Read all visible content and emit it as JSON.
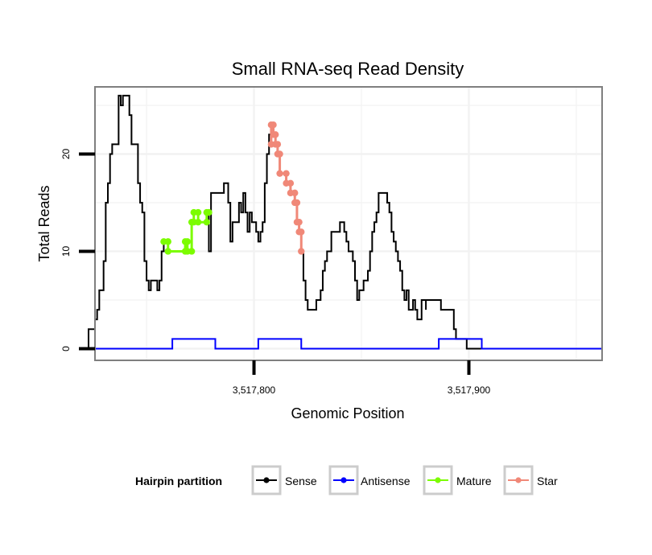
{
  "chart_data": {
    "type": "line",
    "title": "Small RNA-seq Read Density",
    "xlabel": "Genomic Position",
    "ylabel": "Total Reads",
    "xlim": [
      3517726,
      3517962
    ],
    "ylim": [
      -1.2,
      26.9
    ],
    "x_ticks": [
      {
        "value": 3517800,
        "label": "3,517,800"
      },
      {
        "value": 3517900,
        "label": "3,517,900"
      }
    ],
    "y_ticks": [
      {
        "value": 0,
        "label": "0"
      },
      {
        "value": 10,
        "label": "10"
      },
      {
        "value": 20,
        "label": "20"
      }
    ],
    "grid": true,
    "legend": {
      "title": "Hairpin partition",
      "position": "bottom",
      "entries": [
        "Sense",
        "Antisense",
        "Mature",
        "Star"
      ]
    },
    "series": [
      {
        "name": "Sense",
        "color": "#000000",
        "markers": false,
        "points": [
          [
            3517720,
            0
          ],
          [
            3517723,
            0
          ],
          [
            3517723,
            2
          ],
          [
            3517726,
            2
          ],
          [
            3517726,
            3
          ],
          [
            3517727,
            3
          ],
          [
            3517727,
            4
          ],
          [
            3517728,
            4
          ],
          [
            3517728,
            6
          ],
          [
            3517730,
            6
          ],
          [
            3517730,
            9
          ],
          [
            3517731,
            9
          ],
          [
            3517731,
            15
          ],
          [
            3517732,
            15
          ],
          [
            3517732,
            17
          ],
          [
            3517733,
            17
          ],
          [
            3517733,
            20
          ],
          [
            3517734,
            20
          ],
          [
            3517734,
            21
          ],
          [
            3517737,
            21
          ],
          [
            3517737,
            26
          ],
          [
            3517738,
            26
          ],
          [
            3517738,
            25
          ],
          [
            3517739,
            25
          ],
          [
            3517739,
            26
          ],
          [
            3517742,
            26
          ],
          [
            3517742,
            24
          ],
          [
            3517743,
            24
          ],
          [
            3517743,
            21
          ],
          [
            3517746,
            21
          ],
          [
            3517746,
            17
          ],
          [
            3517747,
            17
          ],
          [
            3517747,
            15
          ],
          [
            3517748,
            15
          ],
          [
            3517748,
            14
          ],
          [
            3517749,
            14
          ],
          [
            3517749,
            9
          ],
          [
            3517750,
            9
          ],
          [
            3517750,
            7
          ],
          [
            3517751,
            7
          ],
          [
            3517751,
            6
          ],
          [
            3517752,
            6
          ],
          [
            3517752,
            7
          ],
          [
            3517755,
            7
          ],
          [
            3517755,
            6
          ],
          [
            3517756,
            6
          ],
          [
            3517756,
            7
          ],
          [
            3517757,
            7
          ],
          [
            3517757,
            10
          ],
          [
            3517758,
            10
          ],
          [
            3517758,
            11
          ],
          [
            3517760,
            11
          ],
          [
            3517760,
            10
          ],
          [
            3517768,
            10
          ],
          [
            3517768,
            11
          ],
          [
            3517769,
            11
          ],
          [
            3517769,
            10
          ],
          [
            3517771,
            10
          ],
          [
            3517771,
            13
          ],
          [
            3517772,
            13
          ],
          [
            3517772,
            14
          ],
          [
            3517774,
            14
          ],
          [
            3517774,
            13
          ],
          [
            3517778,
            13
          ],
          [
            3517778,
            14
          ],
          [
            3517779,
            14
          ],
          [
            3517779,
            10
          ],
          [
            3517780,
            10
          ],
          [
            3517780,
            16
          ],
          [
            3517786,
            16
          ],
          [
            3517786,
            17
          ],
          [
            3517788,
            17
          ],
          [
            3517788,
            15
          ],
          [
            3517789,
            15
          ],
          [
            3517789,
            11
          ],
          [
            3517790,
            11
          ],
          [
            3517790,
            13
          ],
          [
            3517793,
            13
          ],
          [
            3517793,
            15
          ],
          [
            3517794,
            15
          ],
          [
            3517794,
            14
          ],
          [
            3517795,
            14
          ],
          [
            3517795,
            16
          ],
          [
            3517796,
            16
          ],
          [
            3517796,
            14
          ],
          [
            3517797,
            14
          ],
          [
            3517797,
            12
          ],
          [
            3517798,
            12
          ],
          [
            3517798,
            14
          ],
          [
            3517799,
            14
          ],
          [
            3517799,
            13
          ],
          [
            3517801,
            13
          ],
          [
            3517801,
            12
          ],
          [
            3517802,
            12
          ],
          [
            3517802,
            11
          ],
          [
            3517803,
            11
          ],
          [
            3517803,
            12
          ],
          [
            3517804,
            12
          ],
          [
            3517804,
            13
          ],
          [
            3517805,
            13
          ],
          [
            3517805,
            17
          ],
          [
            3517806,
            17
          ],
          [
            3517806,
            20
          ],
          [
            3517807,
            20
          ],
          [
            3517807,
            22
          ],
          [
            3517808,
            22
          ],
          [
            3517808,
            23
          ],
          [
            3517809,
            23
          ],
          [
            3517809,
            22
          ],
          [
            3517810,
            22
          ],
          [
            3517810,
            21
          ],
          [
            3517811,
            21
          ],
          [
            3517811,
            20
          ],
          [
            3517812,
            20
          ],
          [
            3517812,
            18
          ],
          [
            3517815,
            18
          ],
          [
            3517815,
            17
          ],
          [
            3517817,
            17
          ],
          [
            3517817,
            16
          ],
          [
            3517819,
            16
          ],
          [
            3517819,
            15
          ],
          [
            3517820,
            15
          ],
          [
            3517820,
            13
          ],
          [
            3517821,
            13
          ],
          [
            3517821,
            12
          ],
          [
            3517822,
            12
          ],
          [
            3517822,
            10
          ],
          [
            3517823,
            10
          ],
          [
            3517823,
            7
          ],
          [
            3517824,
            7
          ],
          [
            3517824,
            5
          ],
          [
            3517825,
            5
          ],
          [
            3517825,
            4
          ],
          [
            3517829,
            4
          ],
          [
            3517829,
            5
          ],
          [
            3517831,
            5
          ],
          [
            3517831,
            6
          ],
          [
            3517832,
            6
          ],
          [
            3517832,
            8
          ],
          [
            3517833,
            8
          ],
          [
            3517833,
            9
          ],
          [
            3517834,
            9
          ],
          [
            3517834,
            10
          ],
          [
            3517836,
            10
          ],
          [
            3517836,
            12
          ],
          [
            3517840,
            12
          ],
          [
            3517840,
            13
          ],
          [
            3517842,
            13
          ],
          [
            3517842,
            12
          ],
          [
            3517843,
            12
          ],
          [
            3517843,
            11
          ],
          [
            3517844,
            11
          ],
          [
            3517844,
            10
          ],
          [
            3517846,
            10
          ],
          [
            3517846,
            9
          ],
          [
            3517847,
            9
          ],
          [
            3517847,
            7
          ],
          [
            3517848,
            7
          ],
          [
            3517848,
            5
          ],
          [
            3517849,
            5
          ],
          [
            3517849,
            6
          ],
          [
            3517851,
            6
          ],
          [
            3517851,
            7
          ],
          [
            3517853,
            7
          ],
          [
            3517853,
            8
          ],
          [
            3517854,
            8
          ],
          [
            3517854,
            10
          ],
          [
            3517855,
            10
          ],
          [
            3517855,
            12
          ],
          [
            3517856,
            12
          ],
          [
            3517856,
            13
          ],
          [
            3517857,
            13
          ],
          [
            3517857,
            14
          ],
          [
            3517858,
            14
          ],
          [
            3517858,
            16
          ],
          [
            3517862,
            16
          ],
          [
            3517862,
            15
          ],
          [
            3517863,
            15
          ],
          [
            3517863,
            14
          ],
          [
            3517864,
            14
          ],
          [
            3517864,
            12
          ],
          [
            3517865,
            12
          ],
          [
            3517865,
            11
          ],
          [
            3517866,
            11
          ],
          [
            3517866,
            10
          ],
          [
            3517867,
            10
          ],
          [
            3517867,
            9
          ],
          [
            3517868,
            9
          ],
          [
            3517868,
            8
          ],
          [
            3517869,
            8
          ],
          [
            3517869,
            6
          ],
          [
            3517870,
            6
          ],
          [
            3517870,
            5
          ],
          [
            3517871,
            5
          ],
          [
            3517871,
            6
          ],
          [
            3517872,
            6
          ],
          [
            3517872,
            4
          ],
          [
            3517874,
            4
          ],
          [
            3517874,
            5
          ],
          [
            3517875,
            5
          ],
          [
            3517875,
            4
          ],
          [
            3517876,
            4
          ],
          [
            3517876,
            3
          ],
          [
            3517878,
            3
          ],
          [
            3517878,
            5
          ],
          [
            3517880,
            5
          ],
          [
            3517880,
            4
          ],
          [
            3517880,
            5
          ],
          [
            3517887,
            5
          ],
          [
            3517887,
            4
          ],
          [
            3517893,
            4
          ],
          [
            3517893,
            2
          ],
          [
            3517894,
            2
          ],
          [
            3517894,
            1
          ],
          [
            3517899,
            1
          ],
          [
            3517899,
            0
          ],
          [
            3517962,
            0
          ]
        ]
      },
      {
        "name": "Antisense",
        "color": "#0000ff",
        "markers": false,
        "points": [
          [
            3517720,
            0
          ],
          [
            3517762,
            0
          ],
          [
            3517762,
            1
          ],
          [
            3517782,
            1
          ],
          [
            3517782,
            0
          ],
          [
            3517802,
            0
          ],
          [
            3517802,
            1
          ],
          [
            3517822,
            1
          ],
          [
            3517822,
            0
          ],
          [
            3517886,
            0
          ],
          [
            3517886,
            1
          ],
          [
            3517906,
            1
          ],
          [
            3517906,
            0
          ],
          [
            3517962,
            0
          ]
        ]
      },
      {
        "name": "Mature",
        "color": "#7cfc00",
        "markers": true,
        "points": [
          [
            3517758,
            11
          ],
          [
            3517760,
            11
          ],
          [
            3517760,
            10
          ],
          [
            3517768,
            10
          ],
          [
            3517768,
            11
          ],
          [
            3517769,
            11
          ],
          [
            3517769,
            10
          ],
          [
            3517771,
            10
          ],
          [
            3517771,
            13
          ],
          [
            3517772,
            13
          ],
          [
            3517772,
            14
          ],
          [
            3517774,
            14
          ],
          [
            3517774,
            13
          ],
          [
            3517778,
            13
          ],
          [
            3517778,
            14
          ],
          [
            3517779,
            14
          ]
        ]
      },
      {
        "name": "Star",
        "color": "#f08878",
        "markers": true,
        "points": [
          [
            3517808,
            21
          ],
          [
            3517808,
            23
          ],
          [
            3517809,
            23
          ],
          [
            3517809,
            22
          ],
          [
            3517810,
            22
          ],
          [
            3517810,
            21
          ],
          [
            3517811,
            21
          ],
          [
            3517811,
            20
          ],
          [
            3517812,
            20
          ],
          [
            3517812,
            18
          ],
          [
            3517815,
            18
          ],
          [
            3517815,
            17
          ],
          [
            3517817,
            17
          ],
          [
            3517817,
            16
          ],
          [
            3517819,
            16
          ],
          [
            3517819,
            15
          ],
          [
            3517820,
            15
          ],
          [
            3517820,
            13
          ],
          [
            3517821,
            13
          ],
          [
            3517821,
            12
          ],
          [
            3517822,
            12
          ],
          [
            3517822,
            10
          ]
        ]
      }
    ]
  }
}
